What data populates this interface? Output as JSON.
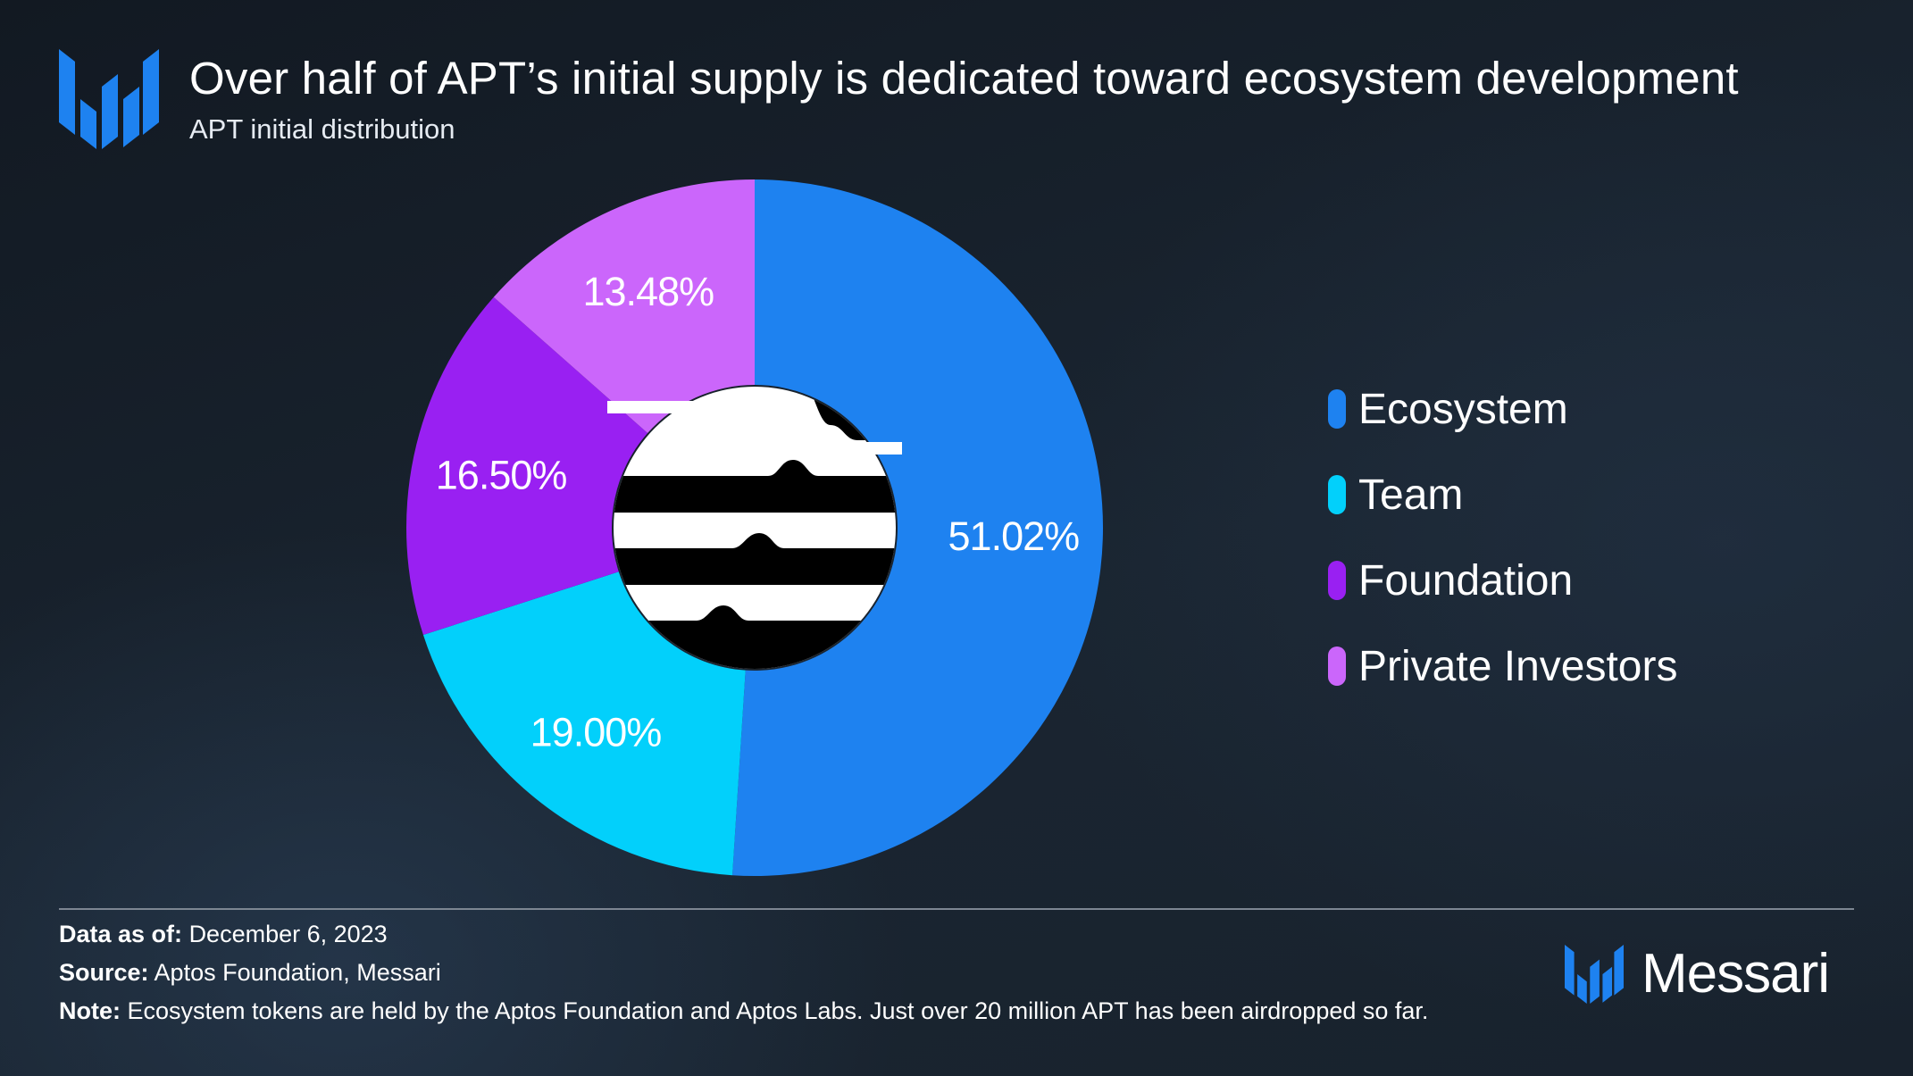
{
  "header": {
    "title": "Over half of APT’s initial supply is dedicated toward ecosystem development",
    "subtitle": "APT initial distribution"
  },
  "chart_data": {
    "type": "pie",
    "donut": true,
    "title": "Over half of APT’s initial supply is dedicated toward ecosystem development",
    "subtitle": "APT initial distribution",
    "categories": [
      "Ecosystem",
      "Team",
      "Foundation",
      "Private Investors"
    ],
    "values": [
      51.02,
      19.0,
      16.5,
      13.48
    ],
    "value_labels": [
      "51.02%",
      "19.00%",
      "16.50%",
      "13.48%"
    ],
    "colors": [
      "#1e82f0",
      "#02d0fb",
      "#9920f2",
      "#cb66fb"
    ],
    "legend_position": "right",
    "center_icon": "aptos-logo"
  },
  "legend": {
    "items": [
      {
        "label": "Ecosystem",
        "color": "#1e82f0"
      },
      {
        "label": "Team",
        "color": "#02d0fb"
      },
      {
        "label": "Foundation",
        "color": "#9920f2"
      },
      {
        "label": "Private Investors",
        "color": "#cb66fb"
      }
    ]
  },
  "footer": {
    "data_as_of_label": "Data as of:",
    "data_as_of_value": "December 6, 2023",
    "source_label": "Source:",
    "source_value": "Aptos Foundation, Messari",
    "note_label": "Note:",
    "note_value": "Ecosystem tokens are held by the Aptos Foundation and Aptos Labs. Just over 20 million APT has been airdropped so far.",
    "brand_name": "Messari",
    "brand_icon": "messari-logo"
  },
  "colors": {
    "accent_blue": "#1e82f0",
    "text": "#ffffff"
  }
}
